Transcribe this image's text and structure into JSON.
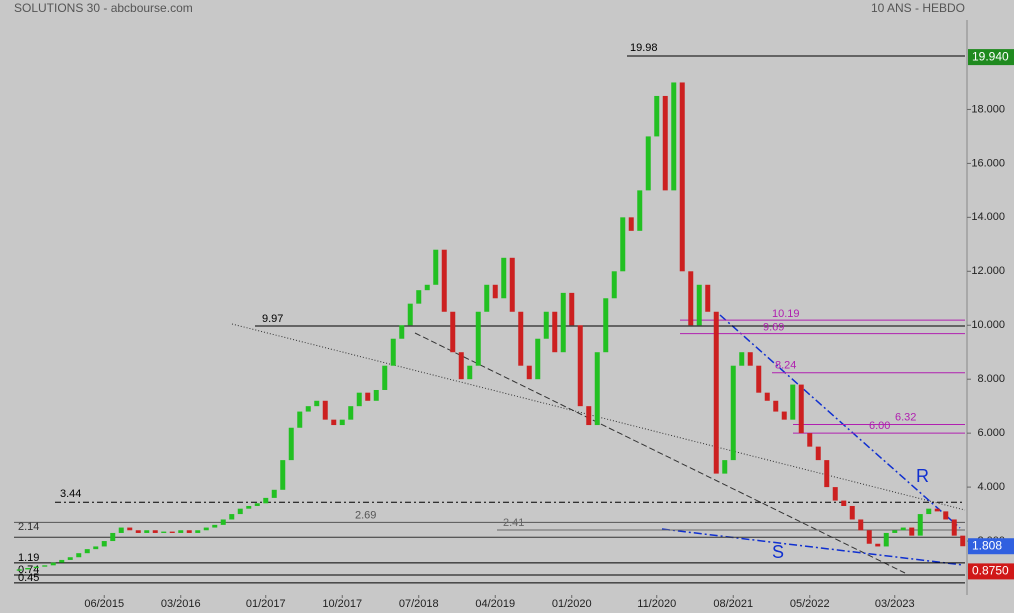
{
  "chart_data": {
    "type": "candlestick",
    "title": "SOLUTIONS 30 - abcbourse.com",
    "subtitle": "10 ANS - HEBDO",
    "series": [
      {
        "name": "SOLUTIONS 30",
        "up_color": "#22c022",
        "down_color": "#cc2020",
        "open": [
          0.9,
          0.95,
          1.0,
          1.05,
          1.1,
          1.2,
          1.3,
          1.4,
          1.55,
          1.7,
          1.8,
          2.0,
          2.3,
          2.5,
          2.4,
          2.3,
          2.4,
          2.3,
          2.35,
          2.3,
          2.4,
          2.3,
          2.4,
          2.5,
          2.6,
          2.8,
          3.0,
          3.2,
          3.3,
          3.4,
          3.6,
          3.9,
          5.0,
          6.2,
          6.8,
          7.0,
          7.2,
          6.5,
          6.3,
          6.5,
          7.0,
          7.5,
          7.2,
          7.6,
          8.5,
          9.5,
          10.0,
          10.8,
          11.3,
          11.5,
          12.8,
          10.5,
          9.0,
          8.0,
          8.5,
          10.5,
          11.5,
          11.0,
          12.5,
          10.5,
          8.5,
          8.0,
          9.5,
          10.5,
          9.0,
          11.2,
          10.0,
          7.0,
          6.3,
          9.0,
          11.0,
          12.0,
          14.0,
          13.5,
          15.0,
          17.0,
          18.5,
          15.0,
          19.0,
          12.0,
          10.0,
          11.5,
          10.5,
          4.5,
          5.0,
          8.5,
          9.0,
          8.5,
          7.5,
          7.2,
          6.8,
          6.5,
          7.8,
          6.0,
          5.5,
          5.0,
          4.0,
          3.5,
          3.3,
          2.8,
          2.4,
          1.9,
          1.8,
          2.3,
          2.4,
          2.5,
          2.2,
          3.0,
          3.2,
          3.1,
          2.8,
          2.2
        ],
        "close": [
          0.95,
          1.0,
          1.05,
          1.1,
          1.2,
          1.3,
          1.4,
          1.55,
          1.7,
          1.8,
          2.0,
          2.3,
          2.5,
          2.4,
          2.3,
          2.4,
          2.3,
          2.35,
          2.3,
          2.4,
          2.3,
          2.4,
          2.5,
          2.6,
          2.8,
          3.0,
          3.2,
          3.3,
          3.4,
          3.6,
          3.9,
          5.0,
          6.2,
          6.8,
          7.0,
          7.2,
          6.5,
          6.3,
          6.5,
          7.0,
          7.5,
          7.2,
          7.6,
          8.5,
          9.5,
          10.0,
          10.8,
          11.3,
          11.5,
          12.8,
          10.5,
          9.0,
          8.0,
          8.5,
          10.5,
          11.5,
          11.0,
          12.5,
          10.5,
          8.5,
          8.0,
          9.5,
          10.5,
          9.0,
          11.2,
          10.0,
          7.0,
          6.3,
          9.0,
          11.0,
          12.0,
          14.0,
          13.5,
          15.0,
          17.0,
          18.5,
          15.0,
          19.0,
          12.0,
          10.0,
          11.5,
          10.5,
          4.5,
          5.0,
          8.5,
          9.0,
          8.5,
          7.5,
          7.2,
          6.8,
          6.5,
          7.8,
          6.0,
          5.5,
          5.0,
          4.0,
          3.5,
          3.3,
          2.8,
          2.4,
          1.9,
          1.8,
          2.3,
          2.4,
          2.5,
          2.2,
          3.0,
          3.2,
          3.1,
          2.8,
          2.2,
          1.808
        ]
      }
    ],
    "ylim": [
      0,
      20.5
    ],
    "yticks": [
      {
        "value": 2,
        "label": "2.000"
      },
      {
        "value": 4,
        "label": "4.000"
      },
      {
        "value": 6,
        "label": "6.000"
      },
      {
        "value": 8,
        "label": "8.000"
      },
      {
        "value": 10,
        "label": "10.000"
      },
      {
        "value": 12,
        "label": "12.000"
      },
      {
        "value": 14,
        "label": "14.000"
      },
      {
        "value": 16,
        "label": "16.000"
      },
      {
        "value": 18,
        "label": "18.000"
      }
    ],
    "xticks": [
      {
        "value": 10,
        "label": "06/2015"
      },
      {
        "value": 19,
        "label": "03/2016"
      },
      {
        "value": 29,
        "label": "01/2017"
      },
      {
        "value": 38,
        "label": "10/2017"
      },
      {
        "value": 47,
        "label": "07/2018"
      },
      {
        "value": 56,
        "label": "04/2019"
      },
      {
        "value": 65,
        "label": "01/2020"
      },
      {
        "value": 75,
        "label": "11/2020"
      },
      {
        "value": 84,
        "label": "08/2021"
      },
      {
        "value": 93,
        "label": "05/2022"
      },
      {
        "value": 103,
        "label": "03/2023"
      }
    ],
    "levels": [
      {
        "value": 19.98,
        "label": "19.98",
        "color": "#000000"
      },
      {
        "value": 9.97,
        "label": "9.97",
        "color": "#000000"
      },
      {
        "value": 3.44,
        "label": "3.44",
        "color": "#000000"
      },
      {
        "value": 2.69,
        "label": "2.69",
        "color": "#555555"
      },
      {
        "value": 2.41,
        "label": "2.41",
        "color": "#666666"
      },
      {
        "value": 2.14,
        "label": "2.14",
        "color": "#333333"
      },
      {
        "value": 1.19,
        "label": "1.19",
        "color": "#000000"
      },
      {
        "value": 0.74,
        "label": "0.74",
        "color": "#000000"
      },
      {
        "value": 0.45,
        "label": "0.45",
        "color": "#000000"
      },
      {
        "value": 10.19,
        "label": "10.19",
        "color": "#b020b0"
      },
      {
        "value": 9.69,
        "label": "9.69",
        "color": "#b020b0"
      },
      {
        "value": 8.24,
        "label": "8.24",
        "color": "#b020b0"
      },
      {
        "value": 6.32,
        "label": "6.32",
        "color": "#b020b0"
      },
      {
        "value": 6.0,
        "label": "6.00",
        "color": "#b020b0"
      }
    ],
    "price_badges": [
      {
        "value": 19.94,
        "label": "19.940",
        "color": "#1f8a1f"
      },
      {
        "value": 1.808,
        "label": "1.808",
        "color": "#3060e0"
      },
      {
        "value": 0.875,
        "label": "0.8750",
        "color": "#d01818"
      }
    ],
    "annotations": [
      "R",
      "S"
    ]
  }
}
